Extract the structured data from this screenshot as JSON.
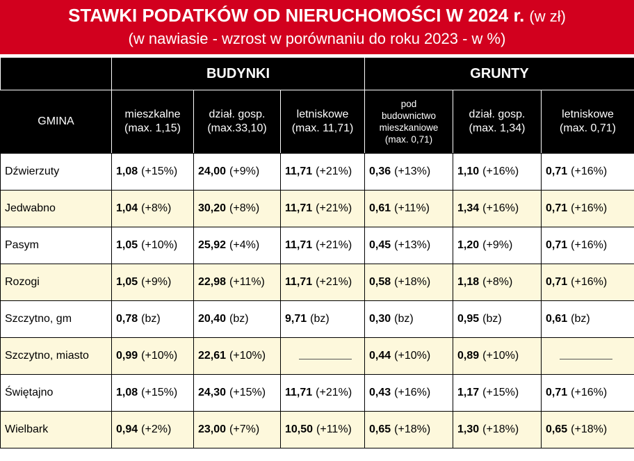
{
  "header": {
    "title": "STAWKI PODATKÓW OD NIERUCHOMOŚCI W 2024 r.",
    "unit": "(w zł)",
    "subtitle": "(w nawiasie - wzrost w porównaniu do roku 2023 - w %)"
  },
  "table": {
    "groups": [
      "BUDYNKI",
      "GRUNTY"
    ],
    "columns": [
      [
        "GMINA"
      ],
      [
        "mieszkalne",
        "(max. 1,15)"
      ],
      [
        "dział. gosp.",
        "(max.33,10)"
      ],
      [
        "letniskowe",
        "(max. 11,71)"
      ],
      [
        "pod",
        "budownictwo",
        "mieszkaniowe",
        "(max. 0,71)"
      ],
      [
        "dział. gosp.",
        "(max. 1,34)"
      ],
      [
        "letniskowe",
        "(max. 0,71)"
      ]
    ],
    "rows": [
      {
        "name": "Dźwierzuty",
        "cells": [
          [
            "1,08",
            "(+15%)"
          ],
          [
            "24,00",
            "(+9%)"
          ],
          [
            "11,71",
            "(+21%)"
          ],
          [
            "0,36",
            "(+13%)"
          ],
          [
            "1,10",
            "(+16%)"
          ],
          [
            "0,71",
            "(+16%)"
          ]
        ]
      },
      {
        "name": "Jedwabno",
        "cells": [
          [
            "1,04",
            "(+8%)"
          ],
          [
            "30,20",
            "(+8%)"
          ],
          [
            "11,71",
            "(+21%)"
          ],
          [
            "0,61",
            "(+11%)"
          ],
          [
            "1,34",
            "(+16%)"
          ],
          [
            "0,71",
            "(+16%)"
          ]
        ]
      },
      {
        "name": "Pasym",
        "cells": [
          [
            "1,05",
            "(+10%)"
          ],
          [
            "25,92",
            "(+4%)"
          ],
          [
            "11,71",
            "(+21%)"
          ],
          [
            "0,45",
            "(+13%)"
          ],
          [
            "1,20",
            "(+9%)"
          ],
          [
            "0,71",
            "(+16%)"
          ]
        ]
      },
      {
        "name": "Rozogi",
        "cells": [
          [
            "1,05",
            "(+9%)"
          ],
          [
            "22,98",
            "(+11%)"
          ],
          [
            "11,71",
            "(+21%)"
          ],
          [
            "0,58",
            "(+18%)"
          ],
          [
            "1,18",
            "(+8%)"
          ],
          [
            "0,71",
            "(+16%)"
          ]
        ]
      },
      {
        "name": "Szczytno, gm",
        "cells": [
          [
            "0,78",
            "(bz)"
          ],
          [
            "20,40",
            "(bz)"
          ],
          [
            "9,71",
            "(bz)"
          ],
          [
            "0,30",
            "(bz)"
          ],
          [
            "0,95",
            "(bz)"
          ],
          [
            "0,61",
            "(bz)"
          ]
        ]
      },
      {
        "name": "Szczytno, miasto",
        "cells": [
          [
            "0,99",
            "(+10%)"
          ],
          [
            "22,61",
            "(+10%)"
          ],
          null,
          [
            "0,44",
            "(+10%)"
          ],
          [
            "0,89",
            "(+10%)"
          ],
          null
        ]
      },
      {
        "name": "Świętajno",
        "cells": [
          [
            "1,08",
            "(+15%)"
          ],
          [
            "24,30",
            "(+15%)"
          ],
          [
            "11,71",
            "(+21%)"
          ],
          [
            "0,43",
            "(+16%)"
          ],
          [
            "1,17",
            "(+15%)"
          ],
          [
            "0,71",
            "(+16%)"
          ]
        ]
      },
      {
        "name": "Wielbark",
        "cells": [
          [
            "0,94",
            "(+2%)"
          ],
          [
            "23,00",
            "(+7%)"
          ],
          [
            "10,50",
            "(+11%)"
          ],
          [
            "0,65",
            "(+18%)"
          ],
          [
            "1,30",
            "(+18%)"
          ],
          [
            "0,65",
            "(+18%)"
          ]
        ]
      }
    ]
  }
}
